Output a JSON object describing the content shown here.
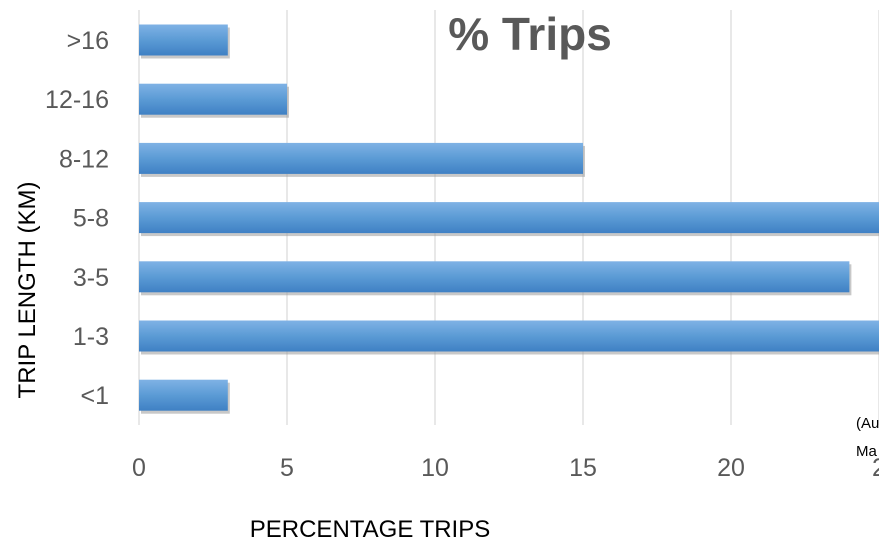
{
  "chart_data": {
    "type": "bar",
    "orientation": "horizontal",
    "title": "% Trips",
    "xlabel": "PERCENTAGE TRIPS",
    "ylabel": "TRIP LENGTH (KM)",
    "categories": [
      ">16",
      "12-16",
      "8-12",
      "5-8",
      "3-5",
      "1-3",
      "<1"
    ],
    "values": [
      3,
      5,
      15,
      25,
      24,
      25,
      3
    ],
    "xlim": [
      0,
      25
    ],
    "xticks": [
      "0",
      "5",
      "10",
      "15",
      "20",
      "2"
    ],
    "grid": true,
    "colors": {
      "bar": "#5b9bd5",
      "bar_top": "#7fb2e5",
      "bar_bottom": "#3f80c4"
    },
    "annotation": [
      "(Au",
      "Ma"
    ]
  }
}
